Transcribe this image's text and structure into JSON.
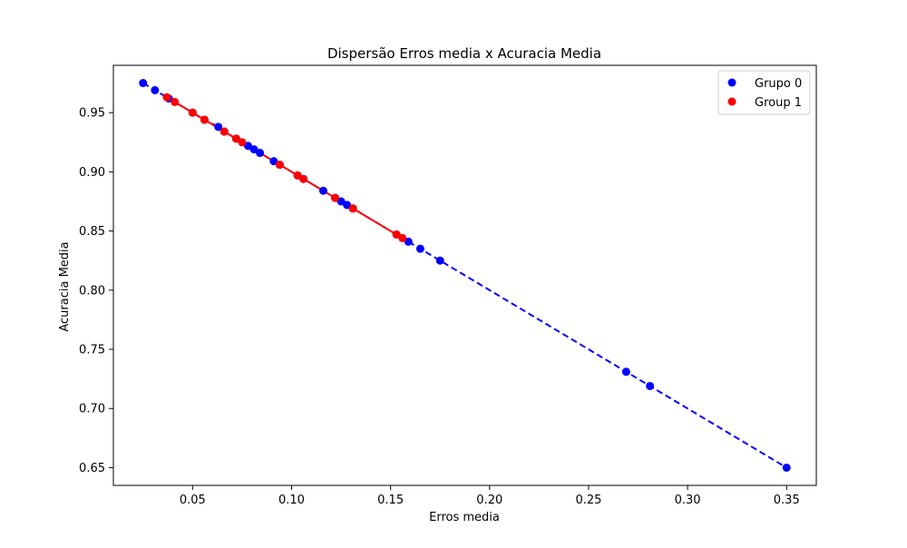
{
  "chart_data": {
    "type": "scatter",
    "title": "Dispersão Erros media x Acuracia Media",
    "xlabel": "Erros media",
    "ylabel": "Acuracia Media",
    "xlim": [
      0.01,
      0.365
    ],
    "ylim": [
      0.635,
      0.99
    ],
    "x_ticks": [
      0.05,
      0.1,
      0.15,
      0.2,
      0.25,
      0.3,
      0.35
    ],
    "x_tick_labels": [
      "0.05",
      "0.10",
      "0.15",
      "0.20",
      "0.25",
      "0.30",
      "0.35"
    ],
    "y_ticks": [
      0.65,
      0.7,
      0.75,
      0.8,
      0.85,
      0.9,
      0.95
    ],
    "y_tick_labels": [
      "0.65",
      "0.70",
      "0.75",
      "0.80",
      "0.85",
      "0.90",
      "0.95"
    ],
    "grid": false,
    "legend_position": "top-right",
    "series": [
      {
        "name": "Grupo 0",
        "color": "#0000ff",
        "line_style": "dashed",
        "points": [
          {
            "x": 0.025,
            "y": 0.975
          },
          {
            "x": 0.031,
            "y": 0.969
          },
          {
            "x": 0.038,
            "y": 0.962
          },
          {
            "x": 0.05,
            "y": 0.95
          },
          {
            "x": 0.056,
            "y": 0.944
          },
          {
            "x": 0.063,
            "y": 0.938
          },
          {
            "x": 0.066,
            "y": 0.934
          },
          {
            "x": 0.072,
            "y": 0.928
          },
          {
            "x": 0.078,
            "y": 0.922
          },
          {
            "x": 0.081,
            "y": 0.919
          },
          {
            "x": 0.084,
            "y": 0.916
          },
          {
            "x": 0.091,
            "y": 0.909
          },
          {
            "x": 0.094,
            "y": 0.906
          },
          {
            "x": 0.103,
            "y": 0.897
          },
          {
            "x": 0.106,
            "y": 0.894
          },
          {
            "x": 0.116,
            "y": 0.884
          },
          {
            "x": 0.122,
            "y": 0.878
          },
          {
            "x": 0.125,
            "y": 0.875
          },
          {
            "x": 0.128,
            "y": 0.872
          },
          {
            "x": 0.131,
            "y": 0.869
          },
          {
            "x": 0.153,
            "y": 0.847
          },
          {
            "x": 0.159,
            "y": 0.841
          },
          {
            "x": 0.165,
            "y": 0.835
          },
          {
            "x": 0.175,
            "y": 0.825
          },
          {
            "x": 0.269,
            "y": 0.731
          },
          {
            "x": 0.281,
            "y": 0.719
          },
          {
            "x": 0.35,
            "y": 0.65
          }
        ]
      },
      {
        "name": "Group 1",
        "color": "#ff0000",
        "line_style": "solid",
        "points": [
          {
            "x": 0.037,
            "y": 0.963
          },
          {
            "x": 0.041,
            "y": 0.959
          },
          {
            "x": 0.05,
            "y": 0.95
          },
          {
            "x": 0.056,
            "y": 0.944
          },
          {
            "x": 0.066,
            "y": 0.934
          },
          {
            "x": 0.072,
            "y": 0.928
          },
          {
            "x": 0.075,
            "y": 0.925
          },
          {
            "x": 0.094,
            "y": 0.906
          },
          {
            "x": 0.103,
            "y": 0.897
          },
          {
            "x": 0.106,
            "y": 0.894
          },
          {
            "x": 0.122,
            "y": 0.878
          },
          {
            "x": 0.131,
            "y": 0.869
          },
          {
            "x": 0.153,
            "y": 0.847
          },
          {
            "x": 0.156,
            "y": 0.844
          }
        ]
      }
    ]
  }
}
